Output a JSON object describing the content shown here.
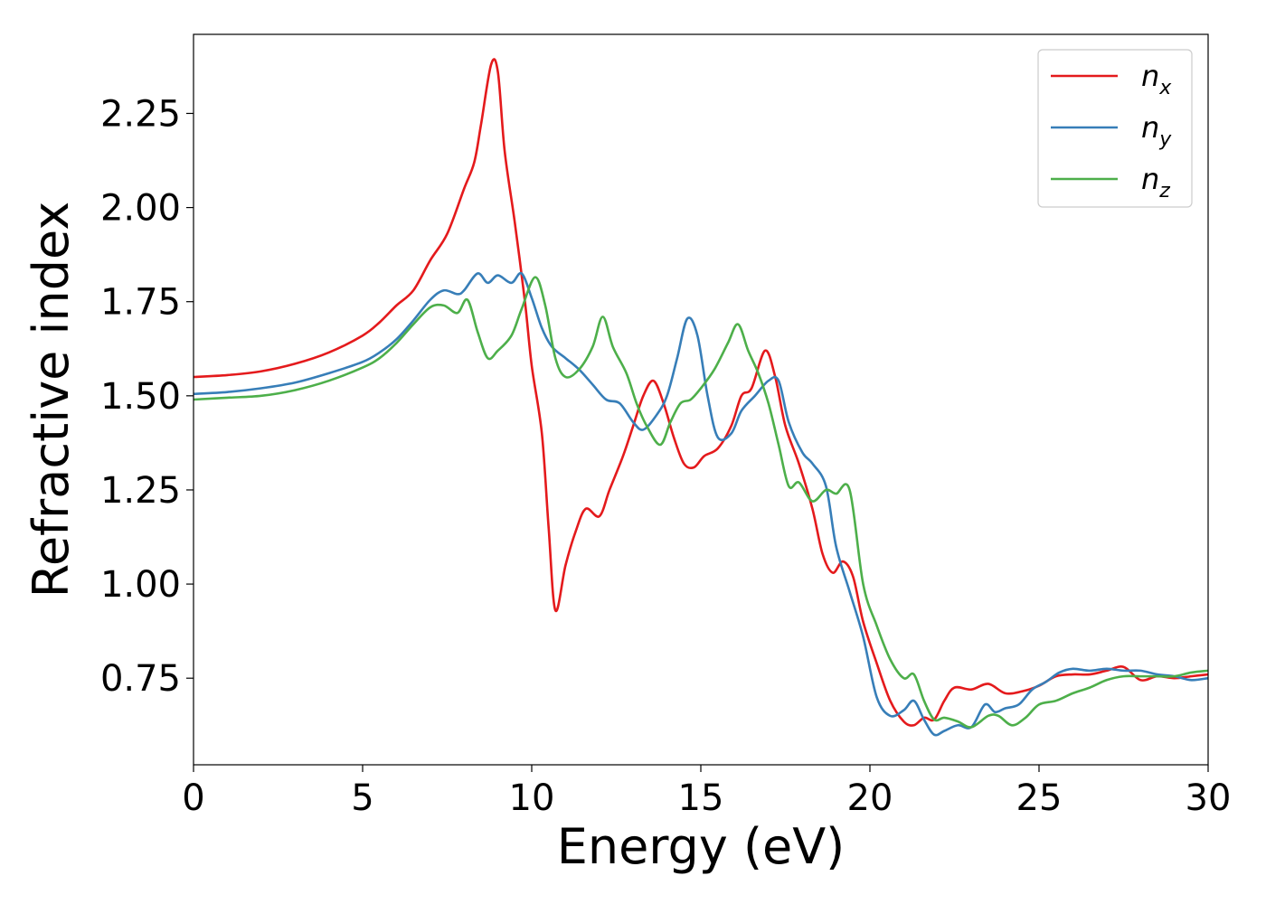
{
  "chart_data": {
    "type": "line",
    "title": "",
    "xlabel": "Energy (eV)",
    "ylabel": "Refractive index",
    "xlim": [
      0,
      30
    ],
    "ylim": [
      0.52,
      2.46
    ],
    "xticks": [
      0,
      5,
      10,
      15,
      20,
      25,
      30
    ],
    "yticks": [
      0.75,
      1.0,
      1.25,
      1.5,
      1.75,
      2.0,
      2.25
    ],
    "xtick_labels": [
      "0",
      "5",
      "10",
      "15",
      "20",
      "25",
      "30"
    ],
    "ytick_labels": [
      "0.75",
      "1.00",
      "1.25",
      "1.50",
      "1.75",
      "2.00",
      "2.25"
    ],
    "grid": false,
    "legend_position": "top-right",
    "series": [
      {
        "name": "n",
        "subscript": "x",
        "color": "#e41a1c",
        "points": [
          [
            0,
            1.55
          ],
          [
            1,
            1.555
          ],
          [
            2,
            1.565
          ],
          [
            3,
            1.585
          ],
          [
            4,
            1.615
          ],
          [
            5,
            1.66
          ],
          [
            5.5,
            1.695
          ],
          [
            6,
            1.74
          ],
          [
            6.5,
            1.78
          ],
          [
            7,
            1.86
          ],
          [
            7.5,
            1.93
          ],
          [
            8,
            2.05
          ],
          [
            8.3,
            2.12
          ],
          [
            8.5,
            2.22
          ],
          [
            8.8,
            2.38
          ],
          [
            9.0,
            2.36
          ],
          [
            9.2,
            2.15
          ],
          [
            9.5,
            1.96
          ],
          [
            9.8,
            1.75
          ],
          [
            10.0,
            1.58
          ],
          [
            10.3,
            1.4
          ],
          [
            10.5,
            1.15
          ],
          [
            10.7,
            0.93
          ],
          [
            11.0,
            1.05
          ],
          [
            11.3,
            1.14
          ],
          [
            11.6,
            1.2
          ],
          [
            12.0,
            1.18
          ],
          [
            12.3,
            1.25
          ],
          [
            12.7,
            1.34
          ],
          [
            13.0,
            1.42
          ],
          [
            13.3,
            1.5
          ],
          [
            13.6,
            1.54
          ],
          [
            13.9,
            1.48
          ],
          [
            14.2,
            1.39
          ],
          [
            14.5,
            1.32
          ],
          [
            14.8,
            1.31
          ],
          [
            15.1,
            1.34
          ],
          [
            15.5,
            1.36
          ],
          [
            15.9,
            1.42
          ],
          [
            16.2,
            1.5
          ],
          [
            16.5,
            1.52
          ],
          [
            16.9,
            1.62
          ],
          [
            17.2,
            1.55
          ],
          [
            17.5,
            1.42
          ],
          [
            17.9,
            1.32
          ],
          [
            18.3,
            1.2
          ],
          [
            18.6,
            1.08
          ],
          [
            18.9,
            1.03
          ],
          [
            19.2,
            1.06
          ],
          [
            19.5,
            1.02
          ],
          [
            19.8,
            0.9
          ],
          [
            20.2,
            0.79
          ],
          [
            20.6,
            0.69
          ],
          [
            21.0,
            0.635
          ],
          [
            21.3,
            0.625
          ],
          [
            21.6,
            0.645
          ],
          [
            21.9,
            0.64
          ],
          [
            22.2,
            0.69
          ],
          [
            22.5,
            0.725
          ],
          [
            23.0,
            0.72
          ],
          [
            23.5,
            0.735
          ],
          [
            24.0,
            0.71
          ],
          [
            24.5,
            0.715
          ],
          [
            25.0,
            0.73
          ],
          [
            25.5,
            0.755
          ],
          [
            26.0,
            0.76
          ],
          [
            26.5,
            0.76
          ],
          [
            27.0,
            0.77
          ],
          [
            27.5,
            0.78
          ],
          [
            28.0,
            0.745
          ],
          [
            28.5,
            0.755
          ],
          [
            29.0,
            0.75
          ],
          [
            29.5,
            0.755
          ],
          [
            30,
            0.76
          ]
        ]
      },
      {
        "name": "n",
        "subscript": "y",
        "color": "#377eb8",
        "points": [
          [
            0,
            1.505
          ],
          [
            1,
            1.51
          ],
          [
            2,
            1.52
          ],
          [
            3,
            1.535
          ],
          [
            4,
            1.56
          ],
          [
            5,
            1.59
          ],
          [
            5.5,
            1.615
          ],
          [
            6,
            1.65
          ],
          [
            6.5,
            1.7
          ],
          [
            7,
            1.755
          ],
          [
            7.4,
            1.78
          ],
          [
            7.8,
            1.77
          ],
          [
            8.0,
            1.78
          ],
          [
            8.4,
            1.825
          ],
          [
            8.7,
            1.8
          ],
          [
            9.0,
            1.82
          ],
          [
            9.4,
            1.8
          ],
          [
            9.7,
            1.825
          ],
          [
            10.0,
            1.76
          ],
          [
            10.3,
            1.68
          ],
          [
            10.6,
            1.63
          ],
          [
            11.0,
            1.6
          ],
          [
            11.4,
            1.57
          ],
          [
            11.8,
            1.53
          ],
          [
            12.2,
            1.49
          ],
          [
            12.6,
            1.48
          ],
          [
            13.0,
            1.43
          ],
          [
            13.3,
            1.41
          ],
          [
            13.7,
            1.45
          ],
          [
            14.0,
            1.5
          ],
          [
            14.3,
            1.6
          ],
          [
            14.6,
            1.705
          ],
          [
            14.9,
            1.66
          ],
          [
            15.2,
            1.5
          ],
          [
            15.5,
            1.39
          ],
          [
            15.9,
            1.4
          ],
          [
            16.2,
            1.46
          ],
          [
            16.6,
            1.5
          ],
          [
            17.0,
            1.54
          ],
          [
            17.3,
            1.54
          ],
          [
            17.6,
            1.43
          ],
          [
            18.0,
            1.35
          ],
          [
            18.3,
            1.32
          ],
          [
            18.7,
            1.26
          ],
          [
            19.0,
            1.1
          ],
          [
            19.4,
            0.98
          ],
          [
            19.8,
            0.86
          ],
          [
            20.2,
            0.7
          ],
          [
            20.6,
            0.65
          ],
          [
            21.0,
            0.665
          ],
          [
            21.3,
            0.69
          ],
          [
            21.6,
            0.64
          ],
          [
            21.9,
            0.6
          ],
          [
            22.2,
            0.61
          ],
          [
            22.6,
            0.625
          ],
          [
            23.0,
            0.62
          ],
          [
            23.4,
            0.68
          ],
          [
            23.7,
            0.66
          ],
          [
            24.0,
            0.67
          ],
          [
            24.4,
            0.68
          ],
          [
            24.8,
            0.72
          ],
          [
            25.2,
            0.74
          ],
          [
            25.6,
            0.765
          ],
          [
            26.0,
            0.775
          ],
          [
            26.5,
            0.77
          ],
          [
            27.0,
            0.775
          ],
          [
            27.5,
            0.77
          ],
          [
            28.0,
            0.77
          ],
          [
            28.5,
            0.76
          ],
          [
            29.0,
            0.755
          ],
          [
            29.5,
            0.745
          ],
          [
            30,
            0.75
          ]
        ]
      },
      {
        "name": "n",
        "subscript": "z",
        "color": "#4daf4a",
        "points": [
          [
            0,
            1.49
          ],
          [
            1,
            1.495
          ],
          [
            2,
            1.5
          ],
          [
            3,
            1.515
          ],
          [
            4,
            1.54
          ],
          [
            5,
            1.575
          ],
          [
            5.5,
            1.6
          ],
          [
            6,
            1.64
          ],
          [
            6.5,
            1.69
          ],
          [
            7,
            1.735
          ],
          [
            7.4,
            1.74
          ],
          [
            7.8,
            1.72
          ],
          [
            8.1,
            1.755
          ],
          [
            8.4,
            1.67
          ],
          [
            8.7,
            1.6
          ],
          [
            9.0,
            1.62
          ],
          [
            9.4,
            1.66
          ],
          [
            9.7,
            1.73
          ],
          [
            10.1,
            1.815
          ],
          [
            10.4,
            1.74
          ],
          [
            10.7,
            1.6
          ],
          [
            11.0,
            1.55
          ],
          [
            11.4,
            1.57
          ],
          [
            11.8,
            1.63
          ],
          [
            12.1,
            1.71
          ],
          [
            12.4,
            1.63
          ],
          [
            12.8,
            1.56
          ],
          [
            13.1,
            1.48
          ],
          [
            13.4,
            1.42
          ],
          [
            13.8,
            1.37
          ],
          [
            14.1,
            1.43
          ],
          [
            14.4,
            1.48
          ],
          [
            14.7,
            1.49
          ],
          [
            15.0,
            1.52
          ],
          [
            15.4,
            1.57
          ],
          [
            15.8,
            1.64
          ],
          [
            16.1,
            1.69
          ],
          [
            16.4,
            1.62
          ],
          [
            16.7,
            1.56
          ],
          [
            17.0,
            1.48
          ],
          [
            17.3,
            1.37
          ],
          [
            17.6,
            1.26
          ],
          [
            17.9,
            1.27
          ],
          [
            18.3,
            1.22
          ],
          [
            18.7,
            1.25
          ],
          [
            19.0,
            1.24
          ],
          [
            19.4,
            1.25
          ],
          [
            19.8,
            1.0
          ],
          [
            20.2,
            0.89
          ],
          [
            20.6,
            0.8
          ],
          [
            21.0,
            0.75
          ],
          [
            21.3,
            0.76
          ],
          [
            21.6,
            0.69
          ],
          [
            21.9,
            0.64
          ],
          [
            22.2,
            0.645
          ],
          [
            22.6,
            0.635
          ],
          [
            23.0,
            0.62
          ],
          [
            23.5,
            0.65
          ],
          [
            23.8,
            0.65
          ],
          [
            24.2,
            0.625
          ],
          [
            24.6,
            0.645
          ],
          [
            25.0,
            0.68
          ],
          [
            25.5,
            0.69
          ],
          [
            26.0,
            0.71
          ],
          [
            26.5,
            0.725
          ],
          [
            27.0,
            0.745
          ],
          [
            27.5,
            0.755
          ],
          [
            28.0,
            0.755
          ],
          [
            28.5,
            0.755
          ],
          [
            29.0,
            0.755
          ],
          [
            29.5,
            0.765
          ],
          [
            30,
            0.77
          ]
        ]
      }
    ]
  }
}
